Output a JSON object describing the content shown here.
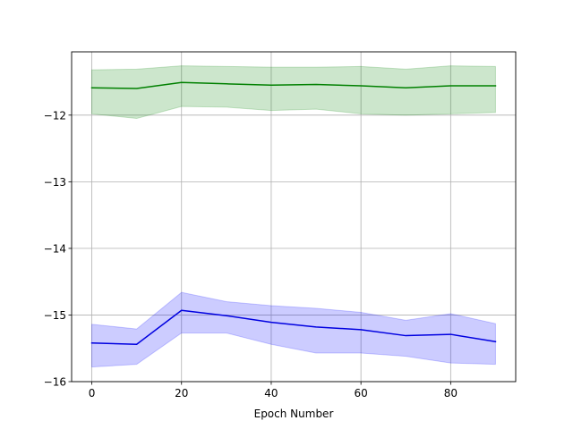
{
  "chart_data": {
    "type": "line",
    "title": "",
    "xlabel": "Epoch Number",
    "ylabel": "",
    "xlim": [
      -4.5,
      94.5
    ],
    "ylim": [
      -16.0,
      -11.05
    ],
    "xticks": [
      0,
      20,
      40,
      60,
      80
    ],
    "yticks": [
      -16,
      -15,
      -14,
      -13,
      -12
    ],
    "ytick_labels": [
      "−16",
      "−15",
      "−14",
      "−13",
      "−12"
    ],
    "grid": true,
    "x": [
      0,
      10,
      20,
      30,
      40,
      50,
      60,
      70,
      80,
      90
    ],
    "series": [
      {
        "color": "#008000",
        "fill_color": "#008000",
        "values": [
          -11.59,
          -11.6,
          -11.51,
          -11.53,
          -11.55,
          -11.54,
          -11.56,
          -11.59,
          -11.56,
          -11.56
        ],
        "lower": [
          -11.98,
          -12.05,
          -11.87,
          -11.88,
          -11.93,
          -11.91,
          -11.98,
          -12.0,
          -11.98,
          -11.96
        ],
        "upper": [
          -11.32,
          -11.31,
          -11.26,
          -11.27,
          -11.28,
          -11.28,
          -11.27,
          -11.31,
          -11.26,
          -11.27
        ]
      },
      {
        "color": "#0000e0",
        "fill_color": "#0000ff",
        "values": [
          -15.42,
          -15.44,
          -14.93,
          -15.01,
          -15.11,
          -15.18,
          -15.22,
          -15.31,
          -15.29,
          -15.4
        ],
        "lower": [
          -15.78,
          -15.74,
          -15.27,
          -15.27,
          -15.44,
          -15.57,
          -15.57,
          -15.62,
          -15.72,
          -15.74
        ],
        "upper": [
          -15.14,
          -15.21,
          -14.66,
          -14.8,
          -14.86,
          -14.9,
          -14.96,
          -15.08,
          -14.98,
          -15.13
        ]
      }
    ]
  }
}
